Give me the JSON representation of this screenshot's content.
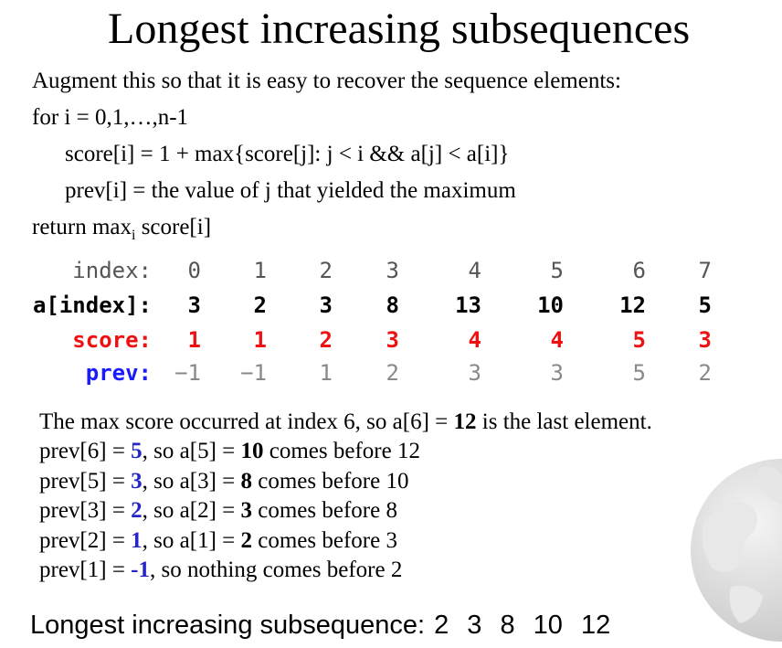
{
  "title": "Longest increasing subsequences",
  "algorithm": {
    "intro": "Augment this so that it is easy to recover the sequence elements:",
    "for_line": "for i = 0,1,…,n-1",
    "score_line": "score[i] = 1 + max{score[j]:  j < i && a[j] < a[i]}",
    "prev_line": "prev[i] = the value of j that yielded the maximum",
    "return_prefix": "return max",
    "return_sub": "i",
    "return_suffix": " score[i]"
  },
  "table": {
    "labels": {
      "index": "index:",
      "a": "a[index]:",
      "score": "score:",
      "prev": "prev:"
    },
    "index": [
      "0",
      "1",
      "2",
      "3",
      "4",
      "5",
      "6",
      "7"
    ],
    "a": [
      "3",
      "2",
      "3",
      "8",
      "13",
      "10",
      "12",
      "5"
    ],
    "score": [
      "1",
      "1",
      "2",
      "3",
      "4",
      "4",
      "5",
      "3"
    ],
    "prev": [
      "−1",
      "−1",
      "1",
      "2",
      "3",
      "3",
      "5",
      "2"
    ]
  },
  "explanation": {
    "line1": {
      "pre": "The max score occurred at index 6, so a[6] = ",
      "b": "12",
      "post": " is the last element."
    },
    "lines": [
      {
        "p1": "prev[6] = ",
        "v": "5",
        "p2": ", so a[5] = ",
        "b": "10",
        "p3": " comes before 12"
      },
      {
        "p1": "prev[5] = ",
        "v": "3",
        "p2": ", so a[3] = ",
        "b": "8",
        "p3": " comes before 10"
      },
      {
        "p1": "prev[3] = ",
        "v": "2",
        "p2": ", so a[2] = ",
        "b": "3",
        "p3": " comes before 8"
      },
      {
        "p1": "prev[2] = ",
        "v": "1",
        "p2": ", so a[1] = ",
        "b": "2",
        "p3": " comes before 3"
      }
    ],
    "last": {
      "p1": "prev[1] = ",
      "v": "-1",
      "p2": ", so nothing comes before 2"
    }
  },
  "result": {
    "label": "Longest increasing subsequence:",
    "sequence": "2 3 8 10 12"
  },
  "colors": {
    "score": "#ee1111",
    "prev_label": "#1a1aff",
    "prev_values": "#888888",
    "explanation_highlight": "#2626c8"
  },
  "decor": {
    "globe_icon": "globe-watermark-icon"
  }
}
